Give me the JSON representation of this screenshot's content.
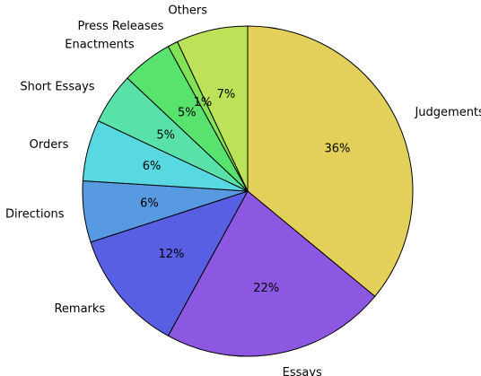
{
  "chart_data": {
    "type": "pie",
    "title": "",
    "start_angle_deg": 90,
    "direction": "clockwise",
    "slices": [
      {
        "label": "Judgements",
        "value": 36,
        "value_label": "36%",
        "color": "#e2d05a"
      },
      {
        "label": "Essays",
        "value": 22,
        "value_label": "22%",
        "color": "#8c58e2"
      },
      {
        "label": "Remarks",
        "value": 12,
        "value_label": "12%",
        "color": "#585fe2"
      },
      {
        "label": "Directions",
        "value": 6,
        "value_label": "6%",
        "color": "#589ae2"
      },
      {
        "label": "Orders",
        "value": 6,
        "value_label": "6%",
        "color": "#58d9e2"
      },
      {
        "label": "Short Essays",
        "value": 5,
        "value_label": "5%",
        "color": "#58e2aa"
      },
      {
        "label": "Enactments",
        "value": 5,
        "value_label": "5%",
        "color": "#58e26e"
      },
      {
        "label": "Press Releases",
        "value": 1,
        "value_label": "1%",
        "color": "#82e258"
      },
      {
        "label": "Others",
        "value": 7,
        "value_label": "7%",
        "color": "#bbe258"
      }
    ]
  }
}
